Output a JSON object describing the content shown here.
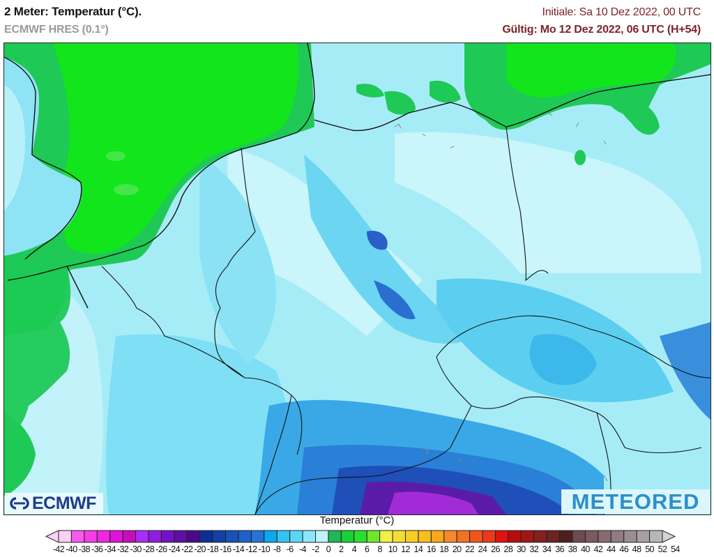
{
  "header": {
    "title": "2 Meter: Temperatur (°C).",
    "model": "ECMWF HRES (0.1°)",
    "init": "Initiale: Sa 10 Dez 2022, 00 UTC",
    "valid": "Gültig: Mo 12 Dez 2022, 06 UTC (H+54)"
  },
  "map": {
    "region": "Central Europe (Germany, Benelux, Czechia, Austria, North Sea)",
    "variable": "2 m temperature",
    "logos": {
      "left": "ECMWF",
      "right": "METEORED"
    }
  },
  "colorbar": {
    "title": "Temperatur (°C)",
    "labels": [
      "-42",
      "-40",
      "-38",
      "-36",
      "-34",
      "-32",
      "-30",
      "-28",
      "-26",
      "-24",
      "-22",
      "-20",
      "-18",
      "-16",
      "-14",
      "-12",
      "-10",
      "-8",
      "-6",
      "-4",
      "-2",
      "0",
      "2",
      "4",
      "6",
      "8",
      "10",
      "12",
      "14",
      "16",
      "18",
      "20",
      "22",
      "24",
      "26",
      "28",
      "30",
      "32",
      "34",
      "36",
      "38",
      "40",
      "42",
      "44",
      "46",
      "48",
      "50",
      "52",
      "54"
    ],
    "colors": [
      "#fbd0f5",
      "#f858ee",
      "#f53ee8",
      "#ef28e0",
      "#e014d6",
      "#c70cba",
      "#a92df5",
      "#8d1de0",
      "#7412c3",
      "#5f0ea6",
      "#4b0a85",
      "#0d2f94",
      "#1240a8",
      "#1552bb",
      "#1c63c9",
      "#2574d6",
      "#0aa8ed",
      "#33c4f2",
      "#5ad6f5",
      "#8de6f8",
      "#bff2fb",
      "#20b857",
      "#17d137",
      "#2be02d",
      "#6ee62c",
      "#f2ef45",
      "#f4de33",
      "#f7cd26",
      "#f8bd1f",
      "#f9a81c",
      "#f7892a",
      "#f47123",
      "#f0571f",
      "#ea3a1e",
      "#e0120f",
      "#b90d0d",
      "#a01616",
      "#862020",
      "#6b2424",
      "#4e1f1f",
      "#6d4a4f",
      "#7a5a60",
      "#876b70",
      "#917b80",
      "#9b8d90",
      "#a6a0a1",
      "#b7b7b7"
    ],
    "arrow_low_color": "#fbd0f5",
    "arrow_high_color": "#d4d4d4"
  },
  "colors": {
    "title_accent": "#7d2329",
    "subtitle_gray": "#9a9a9a",
    "sea_warm_green": "#12e51c",
    "coast_green": "#1ec956",
    "land_cold_cyan": "#9eeaf6"
  }
}
